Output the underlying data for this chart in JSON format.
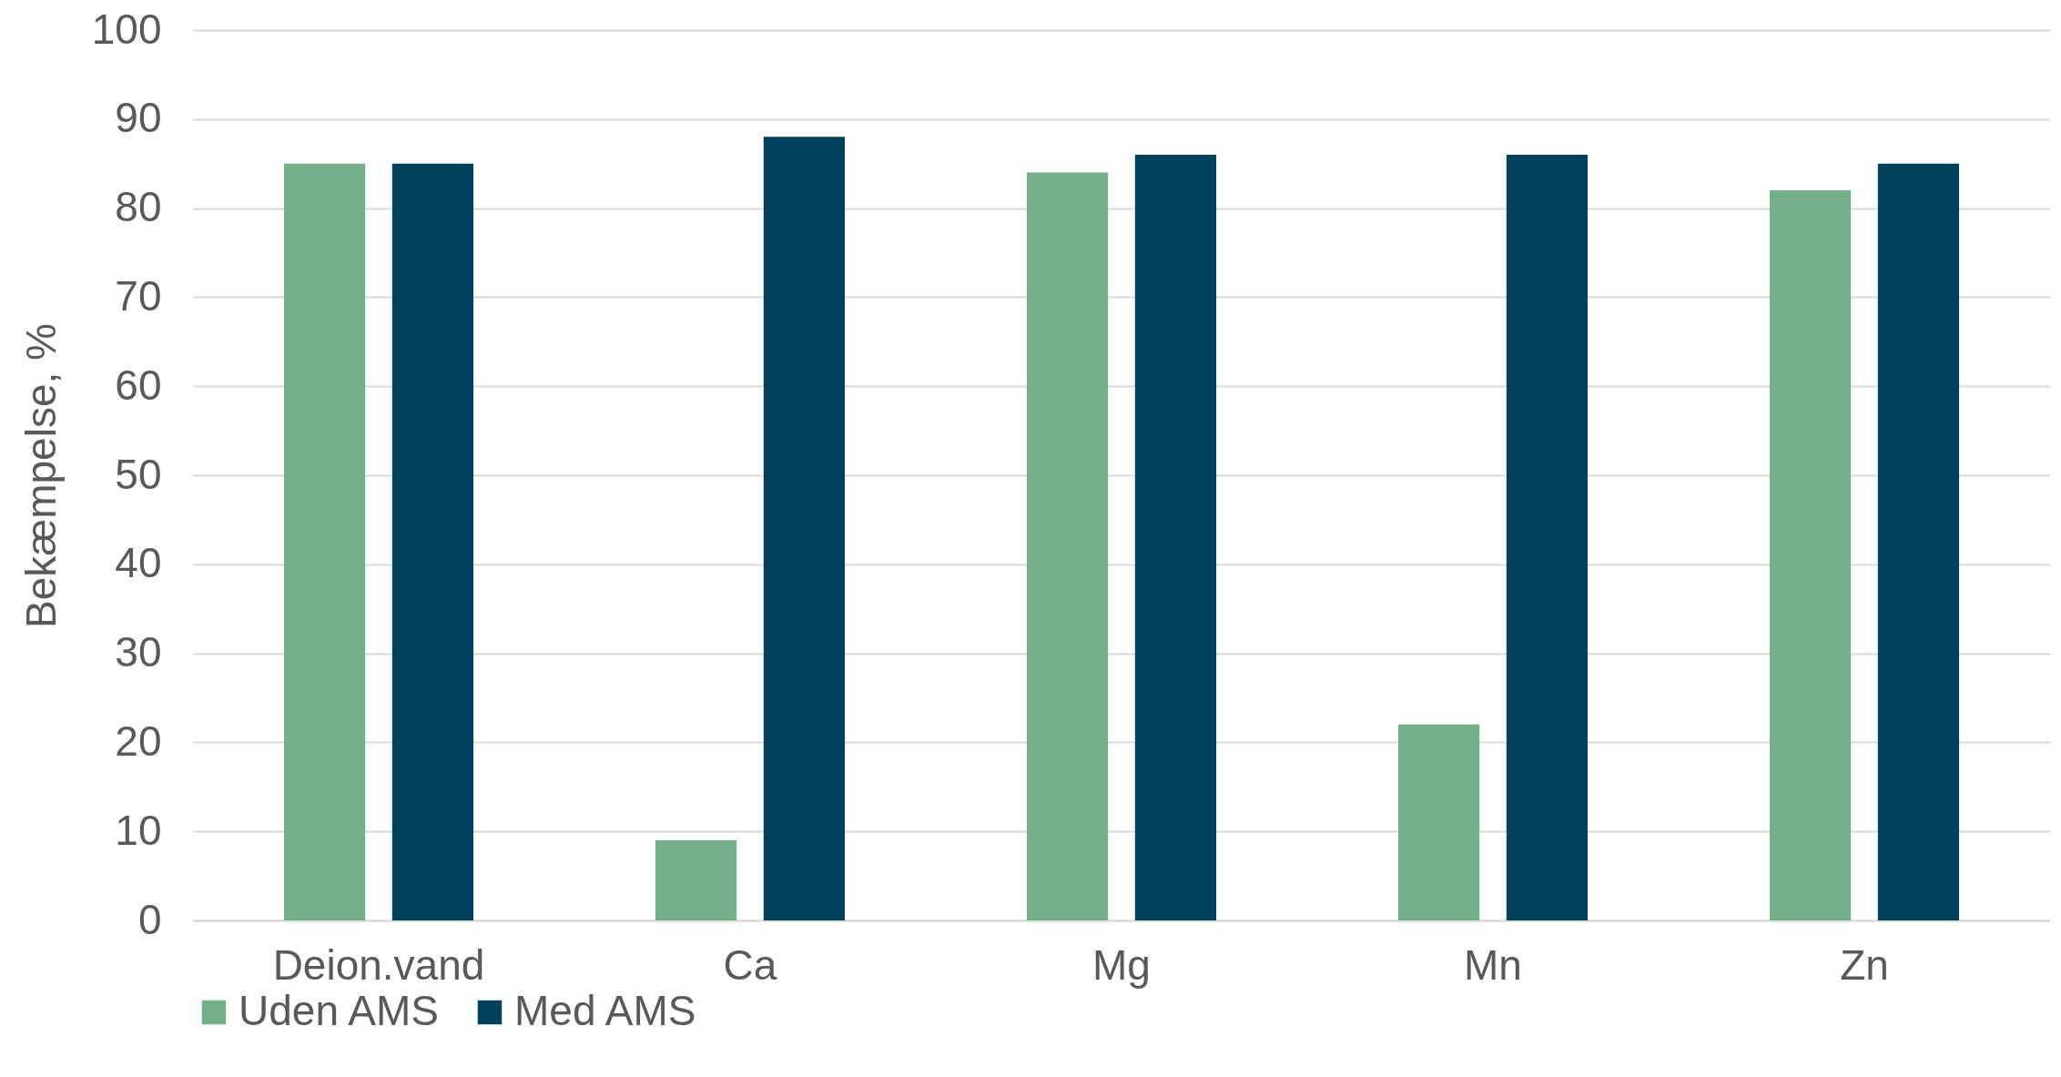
{
  "chart_data": {
    "type": "bar",
    "ylabel": "Bekæmpelse, %",
    "categories": [
      "Deion.vand",
      "Ca",
      "Mg",
      "Mn",
      "Zn"
    ],
    "series": [
      {
        "name": "Uden AMS",
        "color": "#72ae88",
        "values": [
          85,
          9,
          84,
          22,
          82
        ]
      },
      {
        "name": "Med AMS",
        "color": "#00405a",
        "values": [
          85,
          88,
          86,
          86,
          85
        ]
      }
    ],
    "ylim": [
      0,
      100
    ],
    "yticks": [
      0,
      10,
      20,
      30,
      40,
      50,
      60,
      70,
      80,
      90,
      100
    ],
    "grid": "y",
    "legend": "bottom"
  }
}
